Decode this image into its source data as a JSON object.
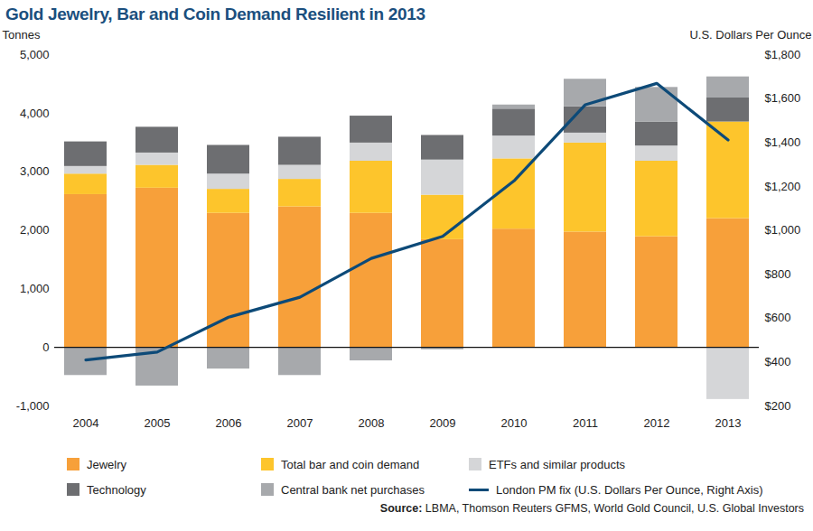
{
  "chart_data": {
    "type": "bar",
    "title": "Gold Jewelry, Bar and Coin Demand Resilient in 2013",
    "y_label": "Tonnes",
    "y2_label": "U.S. Dollars Per Ounce",
    "source": "Source: LBMA, Thomson Reuters GFMS, World Gold Council, U.S. Global Investors",
    "categories": [
      "2004",
      "2005",
      "2006",
      "2007",
      "2008",
      "2009",
      "2010",
      "2011",
      "2012",
      "2013"
    ],
    "stacked": true,
    "grid": false,
    "legend": "bottom",
    "series": [
      {
        "name": "Jewelry",
        "color": "#f7a03a",
        "values": [
          2610,
          2720,
          2290,
          2400,
          2290,
          1840,
          2020,
          1970,
          1890,
          2200
        ]
      },
      {
        "name": "Total bar and coin demand",
        "color": "#fdc52c",
        "values": [
          350,
          390,
          410,
          470,
          890,
          760,
          1200,
          1520,
          1290,
          1650
        ]
      },
      {
        "name": "ETFs and similar products",
        "color": "#d5d6d8",
        "values": [
          130,
          210,
          260,
          240,
          310,
          600,
          390,
          170,
          260,
          -890
        ]
      },
      {
        "name": "Technology",
        "color": "#6d6e71",
        "values": [
          420,
          440,
          490,
          480,
          460,
          420,
          460,
          450,
          410,
          410
        ]
      },
      {
        "name": "Central bank net purchases",
        "color": "#a7a9ac",
        "values": [
          -480,
          -660,
          -370,
          -480,
          -230,
          -40,
          70,
          470,
          590,
          360
        ]
      },
      {
        "name": "London PM fix (U.S. Dollars Per Ounce, Right Axis)",
        "type": "line",
        "axis": "y2",
        "color": "#0d4a78",
        "values": [
          409,
          445,
          604,
          695,
          872,
          972,
          1225,
          1572,
          1669,
          1411
        ]
      }
    ],
    "ylim": [
      -1000,
      5000
    ],
    "yticks": [
      {
        "value": -1000,
        "label": "-1,000"
      },
      0,
      {
        "value": 1000,
        "label": "1,000"
      },
      {
        "value": 2000,
        "label": "2,000"
      },
      {
        "value": 3000,
        "label": "3,000"
      },
      {
        "value": 4000,
        "label": "4,000"
      },
      {
        "value": 5000,
        "label": "5,000"
      }
    ],
    "y2lim": [
      200,
      1800
    ],
    "y2ticks": [
      {
        "value": 200,
        "label": "$200"
      },
      {
        "value": 400,
        "label": "$400"
      },
      {
        "value": 600,
        "label": "$600"
      },
      {
        "value": 800,
        "label": "$800"
      },
      {
        "value": 1000,
        "label": "$1,000"
      },
      {
        "value": 1200,
        "label": "$1,200"
      },
      {
        "value": 1400,
        "label": "$1,400"
      },
      {
        "value": 1600,
        "label": "$1,600"
      },
      {
        "value": 1800,
        "label": "$1,800"
      }
    ]
  }
}
